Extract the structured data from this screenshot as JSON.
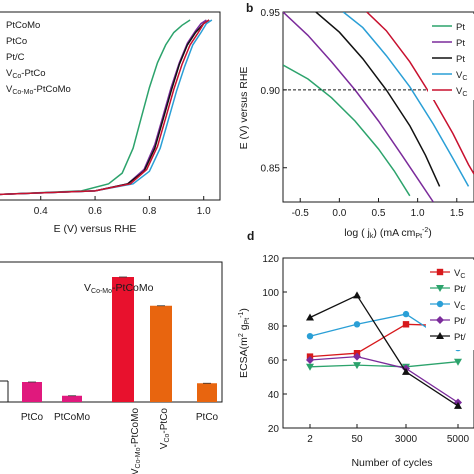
{
  "chart_data": [
    {
      "panel": "a",
      "type": "line",
      "xlabel": "E (V) versus RHE",
      "xlim": [
        0.25,
        1.06
      ],
      "xticks": [
        "0.4",
        "0.6",
        "0.8",
        "1.0"
      ],
      "legend": [
        "PtCoMo",
        "PtCo",
        "Pt/C",
        "V_Co-PtCo",
        "V_Co-Mo-PtCoMo"
      ],
      "series": [
        {
          "color": "#2ca36c",
          "x": [
            0.25,
            0.55,
            0.65,
            0.7,
            0.74,
            0.77,
            0.8,
            0.83,
            0.86,
            0.89,
            0.92,
            0.95
          ],
          "y": [
            0.02,
            0.04,
            0.08,
            0.14,
            0.28,
            0.45,
            0.62,
            0.76,
            0.86,
            0.93,
            0.97,
            1.0
          ]
        },
        {
          "color": "#7b2b9b",
          "x": [
            0.25,
            0.6,
            0.72,
            0.78,
            0.82,
            0.85,
            0.88,
            0.91,
            0.94,
            0.97,
            0.99,
            1.01
          ],
          "y": [
            0.02,
            0.04,
            0.08,
            0.16,
            0.3,
            0.46,
            0.62,
            0.76,
            0.87,
            0.94,
            0.98,
            1.0
          ]
        },
        {
          "color": "#111111",
          "x": [
            0.25,
            0.6,
            0.72,
            0.78,
            0.82,
            0.85,
            0.88,
            0.91,
            0.94,
            0.97,
            1.0,
            1.02
          ],
          "y": [
            0.02,
            0.04,
            0.08,
            0.15,
            0.28,
            0.44,
            0.6,
            0.75,
            0.86,
            0.93,
            0.98,
            1.0
          ]
        },
        {
          "color": "#2a9fd6",
          "x": [
            0.25,
            0.6,
            0.74,
            0.8,
            0.84,
            0.87,
            0.9,
            0.93,
            0.96,
            0.99,
            1.01,
            1.03
          ],
          "y": [
            0.02,
            0.04,
            0.08,
            0.15,
            0.28,
            0.44,
            0.6,
            0.74,
            0.86,
            0.93,
            0.98,
            1.0
          ]
        },
        {
          "color": "#c8102e",
          "x": [
            0.25,
            0.6,
            0.73,
            0.79,
            0.83,
            0.86,
            0.89,
            0.92,
            0.95,
            0.98,
            1.0,
            1.02
          ],
          "y": [
            0.02,
            0.04,
            0.08,
            0.16,
            0.29,
            0.45,
            0.61,
            0.75,
            0.86,
            0.93,
            0.98,
            1.0
          ]
        }
      ]
    },
    {
      "panel": "b",
      "type": "line",
      "xlabel": "log ( j_k) (mA cm_Pt^-2)",
      "ylabel": "E (V) versus RHE",
      "xlim": [
        -0.72,
        1.72
      ],
      "ylim": [
        0.828,
        0.95
      ],
      "xticks": [
        -0.5,
        0.0,
        0.5,
        1.0,
        1.5
      ],
      "yticks": [
        0.85,
        0.9,
        0.95
      ],
      "reference_line": 0.9,
      "legend": [
        "Pt",
        "Pt",
        "Pt",
        "V_C",
        "V_C"
      ],
      "series": [
        {
          "color": "#2ca36c",
          "x": [
            -0.72,
            -0.4,
            -0.1,
            0.2,
            0.5,
            0.7,
            0.9
          ],
          "y": [
            0.916,
            0.907,
            0.895,
            0.88,
            0.862,
            0.848,
            0.832
          ]
        },
        {
          "color": "#7b2b9b",
          "x": [
            -0.72,
            -0.4,
            -0.1,
            0.2,
            0.5,
            0.8,
            1.0,
            1.2
          ],
          "y": [
            0.95,
            0.935,
            0.918,
            0.9,
            0.88,
            0.858,
            0.843,
            0.828
          ]
        },
        {
          "color": "#111111",
          "x": [
            -0.3,
            0.0,
            0.3,
            0.6,
            0.9,
            1.1,
            1.28
          ],
          "y": [
            0.95,
            0.937,
            0.92,
            0.9,
            0.877,
            0.858,
            0.838
          ]
        },
        {
          "color": "#2a9fd6",
          "x": [
            0.05,
            0.3,
            0.6,
            0.9,
            1.2,
            1.45,
            1.65
          ],
          "y": [
            0.95,
            0.94,
            0.922,
            0.902,
            0.878,
            0.856,
            0.838
          ]
        },
        {
          "color": "#c8102e",
          "x": [
            0.35,
            0.6,
            0.9,
            1.2,
            1.45,
            1.65,
            1.72
          ],
          "y": [
            0.95,
            0.938,
            0.918,
            0.894,
            0.872,
            0.852,
            0.846
          ]
        }
      ]
    },
    {
      "panel": "c",
      "type": "bar",
      "annotation": "V_Co-Mo-PtCoMo",
      "categories": [
        "PtCo",
        "PtCoMo",
        "V_Co-Mo-PtCoMo",
        "V_Co-PtCo",
        "PtCo"
      ],
      "colors": [
        "#e0197d",
        "#e0197d",
        "#e8112d",
        "#e8650f",
        "#e8650f"
      ],
      "values": [
        0.16,
        0.05,
        1.0,
        0.77,
        0.15
      ],
      "ylim": [
        0,
        1.12
      ]
    },
    {
      "panel": "d",
      "type": "line",
      "xlabel": "Number of cycles",
      "ylabel": "ECSA(m^2 g_Pt^-1)",
      "categories": [
        "2",
        "50",
        "3000",
        "5000"
      ],
      "ylim": [
        20,
        120
      ],
      "yticks": [
        20,
        40,
        60,
        80,
        100,
        120
      ],
      "legend": [
        "V_C",
        "Pt/",
        "V_C",
        "Pt/",
        "Pt/"
      ],
      "series": [
        {
          "color": "#d7191c",
          "marker": "square",
          "values": [
            62,
            64,
            81,
            80
          ]
        },
        {
          "color": "#2ca36c",
          "marker": "triangle-down",
          "values": [
            56,
            57,
            56,
            59
          ]
        },
        {
          "color": "#2a9fd6",
          "marker": "circle",
          "values": [
            74,
            81,
            87,
            67
          ]
        },
        {
          "color": "#7b2b9b",
          "marker": "diamond",
          "values": [
            60,
            62,
            55,
            35
          ]
        },
        {
          "color": "#111111",
          "marker": "triangle-up",
          "values": [
            85,
            98,
            53,
            33
          ]
        }
      ]
    }
  ]
}
